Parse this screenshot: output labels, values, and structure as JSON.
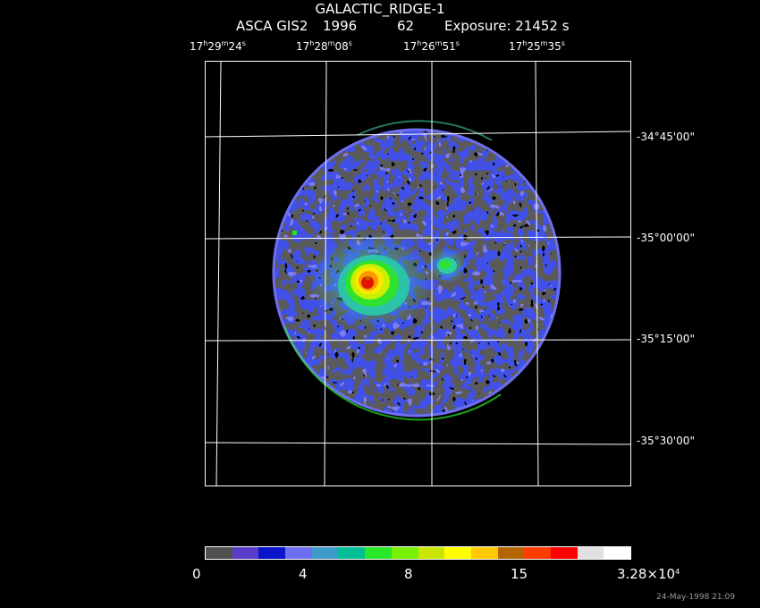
{
  "header": {
    "object": "GALACTIC_RIDGE-1",
    "instrument": "ASCA GIS2",
    "year": "1996",
    "sequence": "62",
    "exposure": "Exposure: 21452 s"
  },
  "ra_ticks": [
    {
      "h": "17",
      "m": "29",
      "s": "24"
    },
    {
      "h": "17",
      "m": "28",
      "s": "08"
    },
    {
      "h": "17",
      "m": "26",
      "s": "51"
    },
    {
      "h": "17",
      "m": "25",
      "s": "35"
    }
  ],
  "dec_ticks": [
    "-34°45'00\"",
    "-35°00'00\"",
    "-35°15'00\"",
    "-35°30'00\""
  ],
  "colorbar": {
    "labels": [
      "0",
      "4",
      "8",
      "15"
    ],
    "max_mantissa": "3.28×10",
    "max_exponent": "4",
    "colors": [
      "#505050",
      "#5a3cc8",
      "#0a14c8",
      "#6e6ef0",
      "#3c9bc8",
      "#00be96",
      "#28e628",
      "#78f000",
      "#c8e600",
      "#ffff00",
      "#ffc800",
      "#b46400",
      "#ff3c00",
      "#ff0000",
      "#e1e1e1",
      "#ffffff"
    ]
  },
  "footer": {
    "date": "24-May-1998 21:09"
  }
}
